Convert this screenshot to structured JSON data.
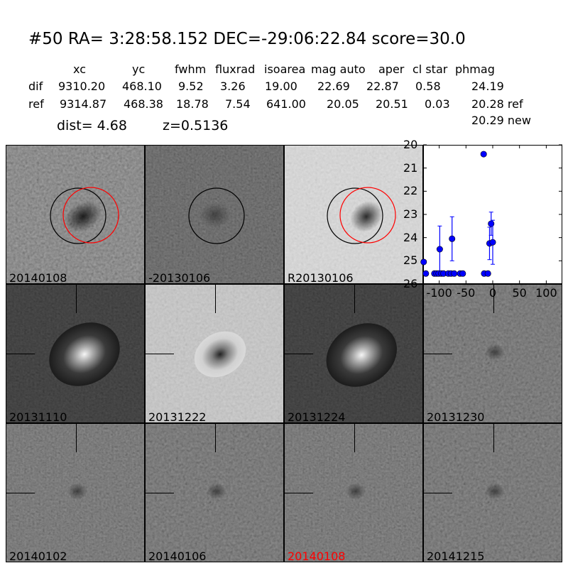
{
  "header": {
    "title": "#50   RA= 3:28:58.152 DEC=-29:06:22.84       score=30.0",
    "columns": [
      "xc",
      "yc",
      "fwhm",
      "fluxrad",
      "isoarea",
      "mag auto",
      "aper",
      "cl star",
      "phmag"
    ],
    "rows": [
      {
        "label": "dif",
        "values": [
          "9310.20",
          "468.10",
          "9.52",
          "3.26",
          "19.00",
          "22.69",
          "22.87",
          "0.58",
          "24.19"
        ]
      },
      {
        "label": "ref",
        "values": [
          "9314.87",
          "468.38",
          "18.78",
          "7.54",
          "641.00",
          "20.05",
          "20.51",
          "0.03",
          "20.28 ref"
        ]
      }
    ],
    "extra_phmag": "20.29 new",
    "dist": "dist=  4.68",
    "z": "z=0.5136"
  },
  "stamps": [
    {
      "label": "20140108",
      "label_color": "#000000",
      "style": "noisy-mid",
      "circles": [
        "black",
        "red"
      ]
    },
    {
      "label": "-20130106",
      "label_color": "#000000",
      "style": "noisy-dark",
      "circles": [
        "black"
      ]
    },
    {
      "label": "R20130106",
      "label_color": "#000000",
      "style": "light",
      "circles": [
        "black",
        "red"
      ]
    },
    {
      "label": "20131110",
      "label_color": "#000000",
      "style": "dark-galaxy"
    },
    {
      "label": "20131222",
      "label_color": "#000000",
      "style": "light-galaxy"
    },
    {
      "label": "20131224",
      "label_color": "#000000",
      "style": "dark-galaxy"
    },
    {
      "label": "20131230",
      "label_color": "#000000",
      "style": "noise"
    },
    {
      "label": "20140102",
      "label_color": "#000000",
      "style": "noise"
    },
    {
      "label": "20140106",
      "label_color": "#000000",
      "style": "noise"
    },
    {
      "label": "20140108",
      "label_color": "#ff0000",
      "style": "noise"
    },
    {
      "label": "20141215",
      "label_color": "#000000",
      "style": "noise"
    }
  ],
  "chart_data": {
    "type": "scatter",
    "title": "",
    "xlabel": "",
    "ylabel": "",
    "xlim": [
      -130,
      130
    ],
    "ylim": [
      26,
      20
    ],
    "y_inverted": true,
    "xticks": [
      "-100",
      "-50",
      "0",
      "50",
      "100"
    ],
    "xtick_values": [
      -100,
      -50,
      0,
      50,
      100
    ],
    "yticks": [
      "20",
      "21",
      "22",
      "23",
      "24",
      "25",
      "26"
    ],
    "ytick_values": [
      20,
      21,
      22,
      23,
      24,
      25,
      26
    ],
    "marker_color": "#0000ff",
    "points": [
      {
        "x": -129,
        "y": 25.05,
        "err": 0.0
      },
      {
        "x": -125,
        "y": 25.55,
        "err": 0.0
      },
      {
        "x": -109,
        "y": 25.55,
        "err": 0.0
      },
      {
        "x": -105,
        "y": 25.55,
        "err": 0.0
      },
      {
        "x": -101,
        "y": 25.55,
        "err": 0.0
      },
      {
        "x": -99,
        "y": 24.5,
        "err": 1.0
      },
      {
        "x": -96,
        "y": 25.55,
        "err": 0.0
      },
      {
        "x": -92,
        "y": 25.55,
        "err": 0.0
      },
      {
        "x": -83,
        "y": 25.55,
        "err": 0.0
      },
      {
        "x": -78,
        "y": 25.55,
        "err": 0.0
      },
      {
        "x": -76,
        "y": 24.05,
        "err": 0.95
      },
      {
        "x": -72,
        "y": 25.55,
        "err": 0.0
      },
      {
        "x": -61,
        "y": 25.55,
        "err": 0.0
      },
      {
        "x": -56,
        "y": 25.55,
        "err": 0.0
      },
      {
        "x": -17,
        "y": 20.4,
        "err": 0.0
      },
      {
        "x": -16,
        "y": 25.55,
        "err": 0.0
      },
      {
        "x": -9,
        "y": 25.55,
        "err": 0.0
      },
      {
        "x": -6,
        "y": 24.25,
        "err": 0.7
      },
      {
        "x": -3,
        "y": 23.4,
        "err": 0.5
      },
      {
        "x": 0,
        "y": 24.2,
        "err": 0.95
      }
    ]
  }
}
